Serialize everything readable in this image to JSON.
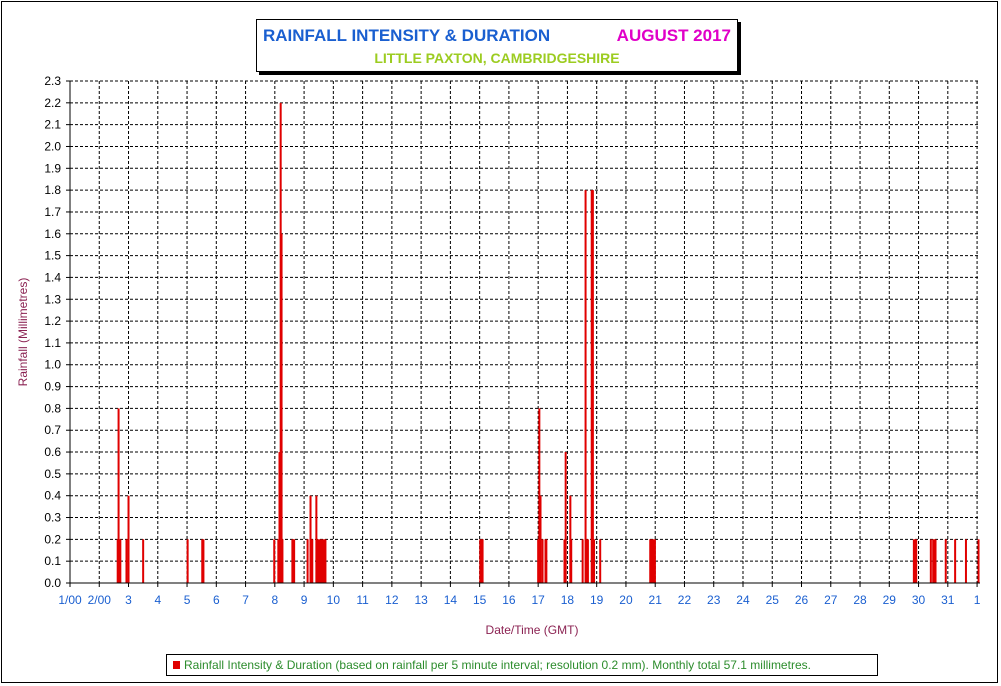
{
  "chart_data": {
    "type": "bar",
    "title": "RAINFALL INTENSITY & DURATION",
    "title_period": "AUGUST 2017",
    "subtitle": "LITTLE PAXTON, CAMBRIDGESHIRE",
    "xlabel": "Date/Time (GMT)",
    "ylabel": "Rainfall (Millimetres)",
    "ylim": [
      0,
      2.3
    ],
    "yticks": [
      "0.0",
      "0.1",
      "0.2",
      "0.3",
      "0.4",
      "0.5",
      "0.6",
      "0.7",
      "0.8",
      "0.9",
      "1.0",
      "1.1",
      "1.2",
      "1.3",
      "1.4",
      "1.5",
      "1.6",
      "1.7",
      "1.8",
      "1.9",
      "2.0",
      "2.1",
      "2.2",
      "2.3"
    ],
    "xlim": [
      1,
      32.1
    ],
    "xticks": [
      {
        "x": 1,
        "label": "1/00"
      },
      {
        "x": 2,
        "label": "2/00"
      },
      {
        "x": 3,
        "label": "3"
      },
      {
        "x": 4,
        "label": "4"
      },
      {
        "x": 5,
        "label": "5"
      },
      {
        "x": 6,
        "label": "6"
      },
      {
        "x": 7,
        "label": "7"
      },
      {
        "x": 8,
        "label": "8"
      },
      {
        "x": 9,
        "label": "9"
      },
      {
        "x": 10,
        "label": "10"
      },
      {
        "x": 11,
        "label": "11"
      },
      {
        "x": 12,
        "label": "12"
      },
      {
        "x": 13,
        "label": "13"
      },
      {
        "x": 14,
        "label": "14"
      },
      {
        "x": 15,
        "label": "15"
      },
      {
        "x": 16,
        "label": "16"
      },
      {
        "x": 17,
        "label": "17"
      },
      {
        "x": 18,
        "label": "18"
      },
      {
        "x": 19,
        "label": "19"
      },
      {
        "x": 20,
        "label": "20"
      },
      {
        "x": 21,
        "label": "21"
      },
      {
        "x": 22,
        "label": "22"
      },
      {
        "x": 23,
        "label": "23"
      },
      {
        "x": 24,
        "label": "24"
      },
      {
        "x": 25,
        "label": "25"
      },
      {
        "x": 26,
        "label": "26"
      },
      {
        "x": 27,
        "label": "27"
      },
      {
        "x": 28,
        "label": "28"
      },
      {
        "x": 29,
        "label": "29"
      },
      {
        "x": 30,
        "label": "30"
      },
      {
        "x": 31,
        "label": "31"
      },
      {
        "x": 32,
        "label": "1"
      }
    ],
    "grid": true,
    "legend_position": "bottom",
    "series": [
      {
        "name": "Rainfall Intensity & Duration (based on rainfall per 5 minute interval; resolution 0.2 mm). Monthly total 57.1 millimetres.",
        "color": "#e00000",
        "points": [
          {
            "x": 2.63,
            "y": 0.2
          },
          {
            "x": 2.66,
            "y": 0.8
          },
          {
            "x": 2.69,
            "y": 0.2
          },
          {
            "x": 2.72,
            "y": 0.2
          },
          {
            "x": 2.93,
            "y": 0.2
          },
          {
            "x": 3.0,
            "y": 0.4
          },
          {
            "x": 3.5,
            "y": 0.2
          },
          {
            "x": 5.02,
            "y": 0.2
          },
          {
            "x": 5.52,
            "y": 0.2
          },
          {
            "x": 5.56,
            "y": 0.2
          },
          {
            "x": 7.98,
            "y": 0.2
          },
          {
            "x": 8.12,
            "y": 0.2
          },
          {
            "x": 8.16,
            "y": 0.6
          },
          {
            "x": 8.2,
            "y": 2.2
          },
          {
            "x": 8.23,
            "y": 1.6
          },
          {
            "x": 8.26,
            "y": 0.2
          },
          {
            "x": 8.6,
            "y": 0.2
          },
          {
            "x": 8.63,
            "y": 0.2
          },
          {
            "x": 8.66,
            "y": 0.2
          },
          {
            "x": 9.12,
            "y": 0.2
          },
          {
            "x": 9.22,
            "y": 0.4
          },
          {
            "x": 9.28,
            "y": 0.2
          },
          {
            "x": 9.42,
            "y": 0.4
          },
          {
            "x": 9.47,
            "y": 0.2
          },
          {
            "x": 9.52,
            "y": 0.2
          },
          {
            "x": 9.57,
            "y": 0.2
          },
          {
            "x": 9.62,
            "y": 0.2
          },
          {
            "x": 9.68,
            "y": 0.2
          },
          {
            "x": 9.73,
            "y": 0.2
          },
          {
            "x": 15.02,
            "y": 0.2
          },
          {
            "x": 15.06,
            "y": 0.2
          },
          {
            "x": 15.1,
            "y": 0.2
          },
          {
            "x": 17.0,
            "y": 0.2
          },
          {
            "x": 17.04,
            "y": 0.8
          },
          {
            "x": 17.08,
            "y": 0.4
          },
          {
            "x": 17.15,
            "y": 0.2
          },
          {
            "x": 17.25,
            "y": 0.2
          },
          {
            "x": 17.28,
            "y": 0.2
          },
          {
            "x": 17.9,
            "y": 0.2
          },
          {
            "x": 17.94,
            "y": 0.6
          },
          {
            "x": 18.1,
            "y": 0.4
          },
          {
            "x": 18.13,
            "y": 0.2
          },
          {
            "x": 18.52,
            "y": 0.2
          },
          {
            "x": 18.62,
            "y": 1.8
          },
          {
            "x": 18.66,
            "y": 0.2
          },
          {
            "x": 18.7,
            "y": 0.2
          },
          {
            "x": 18.83,
            "y": 1.8
          },
          {
            "x": 18.87,
            "y": 1.8
          },
          {
            "x": 18.91,
            "y": 0.2
          },
          {
            "x": 19.12,
            "y": 0.2
          },
          {
            "x": 20.83,
            "y": 0.2
          },
          {
            "x": 20.87,
            "y": 0.2
          },
          {
            "x": 20.91,
            "y": 0.2
          },
          {
            "x": 20.95,
            "y": 0.2
          },
          {
            "x": 20.99,
            "y": 0.2
          },
          {
            "x": 29.84,
            "y": 0.2
          },
          {
            "x": 29.88,
            "y": 0.2
          },
          {
            "x": 29.92,
            "y": 0.2
          },
          {
            "x": 30.42,
            "y": 0.2
          },
          {
            "x": 30.5,
            "y": 0.2
          },
          {
            "x": 30.54,
            "y": 0.2
          },
          {
            "x": 30.58,
            "y": 0.2
          },
          {
            "x": 30.93,
            "y": 0.2
          },
          {
            "x": 31.25,
            "y": 0.2
          },
          {
            "x": 31.62,
            "y": 0.2
          },
          {
            "x": 32.05,
            "y": 0.2
          }
        ]
      }
    ]
  }
}
